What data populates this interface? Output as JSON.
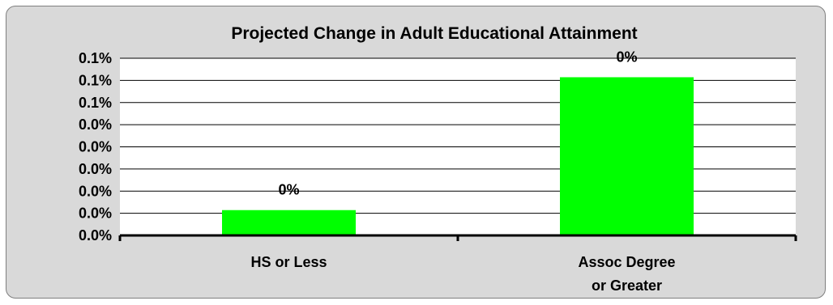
{
  "chart_data": {
    "type": "bar",
    "title": "Projected Change in Adult Educational Attainment",
    "xlabel": "",
    "ylabel": "",
    "categories": [
      [
        "HS or Less"
      ],
      [
        "Assoc Degree",
        "or Greater"
      ]
    ],
    "values": [
      0.0002,
      0.00125
    ],
    "data_labels": [
      "0%",
      "0%"
    ],
    "y_tick_labels": [
      "0.0%",
      "0.0%",
      "0.0%",
      "0.0%",
      "0.0%",
      "0.0%",
      "0.1%",
      "0.1%",
      "0.1%"
    ],
    "ylim": [
      0,
      0.0014
    ],
    "grid": true,
    "legend": "none",
    "bar_color": "#00ff00",
    "background_color": "#d9d9d9",
    "plot_background_color": "#ffffff"
  }
}
